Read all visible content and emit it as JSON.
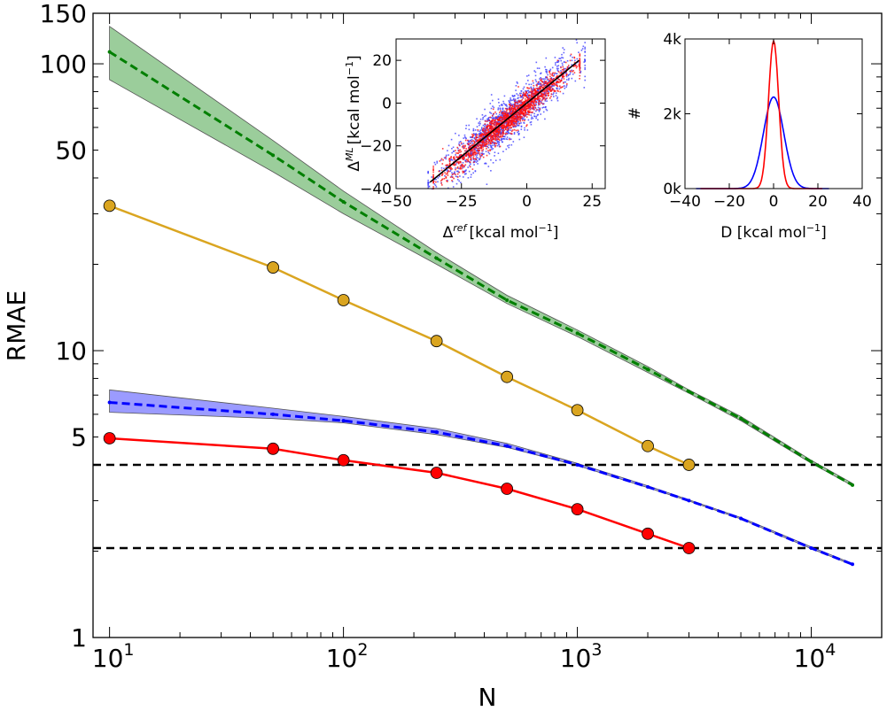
{
  "chart_data": [
    {
      "type": "line",
      "title": "",
      "xlabel": "N",
      "ylabel": "RMAE",
      "xscale": "log",
      "yscale": "log",
      "xlim": [
        8.5,
        20000
      ],
      "ylim": [
        1,
        150
      ],
      "x_ticks": [
        {
          "value": 10,
          "base": "10",
          "exp": "1"
        },
        {
          "value": 100,
          "base": "10",
          "exp": "2"
        },
        {
          "value": 1000,
          "base": "10",
          "exp": "3"
        },
        {
          "value": 10000,
          "base": "10",
          "exp": "4"
        }
      ],
      "y_ticks": [
        {
          "value": 1,
          "label": "1"
        },
        {
          "value": 5,
          "label": "5"
        },
        {
          "value": 10,
          "label": "10"
        },
        {
          "value": 50,
          "label": "50"
        },
        {
          "value": 100,
          "label": "100"
        },
        {
          "value": 150,
          "label": "150"
        }
      ],
      "hlines": [
        4.0,
        2.05
      ],
      "series": [
        {
          "name": "green-band",
          "style": "dashed-band",
          "color": "#007f00",
          "fill": "#7fbf7f",
          "x": [
            10,
            50,
            100,
            250,
            500,
            1000,
            2000,
            3000,
            5000,
            10000,
            15000
          ],
          "y": [
            110,
            48,
            33,
            21,
            15,
            11.5,
            8.6,
            7.2,
            5.8,
            4.1,
            3.4
          ],
          "lower": [
            88,
            42,
            30,
            20,
            14.6,
            11.2,
            8.4,
            7.1,
            5.7,
            4.05,
            3.38
          ],
          "upper": [
            135,
            54,
            36,
            22,
            15.6,
            11.8,
            8.8,
            7.3,
            5.9,
            4.15,
            3.45
          ]
        },
        {
          "name": "gold",
          "style": "solid-marker",
          "color": "#daa520",
          "x": [
            10,
            50,
            100,
            250,
            500,
            1000,
            2000,
            3000
          ],
          "y": [
            32,
            19.5,
            15,
            10.8,
            8.1,
            6.2,
            4.65,
            4.0
          ]
        },
        {
          "name": "blue-band",
          "style": "dashed-band",
          "color": "#0000ff",
          "fill": "#7f7fff",
          "x": [
            10,
            50,
            100,
            250,
            500,
            1000,
            2000,
            3000,
            5000,
            10000,
            15000
          ],
          "y": [
            6.6,
            6.0,
            5.7,
            5.2,
            4.65,
            4.0,
            3.35,
            3.0,
            2.6,
            2.05,
            1.8
          ],
          "lower": [
            6.1,
            5.8,
            5.6,
            5.1,
            4.6,
            3.98,
            3.33,
            2.99,
            2.59,
            2.04,
            1.79
          ],
          "upper": [
            7.3,
            6.3,
            5.9,
            5.35,
            4.75,
            4.05,
            3.38,
            3.02,
            2.62,
            2.07,
            1.81
          ]
        },
        {
          "name": "red",
          "style": "solid-marker",
          "color": "#ff0000",
          "x": [
            10,
            50,
            100,
            250,
            500,
            1000,
            2000,
            3000
          ],
          "y": [
            4.95,
            4.55,
            4.15,
            3.75,
            3.3,
            2.8,
            2.3,
            2.05
          ]
        }
      ]
    },
    {
      "type": "scatter",
      "title": "",
      "xlabel_base": "Δ",
      "xlabel_sup": "ref",
      "xlabel_main": "[kcal mol",
      "xlabel_exp": "−1",
      "xlabel_close": "]",
      "ylabel_base": "Δ",
      "ylabel_sup": "ML",
      "ylabel_main": "[kcal mol",
      "ylabel_exp": "−1",
      "ylabel_close": "]",
      "xlim": [
        -50,
        30
      ],
      "ylim": [
        -40,
        30
      ],
      "x_ticks": [
        {
          "value": -50,
          "label": "−50"
        },
        {
          "value": -25,
          "label": "−25"
        },
        {
          "value": 0,
          "label": "0"
        },
        {
          "value": 25,
          "label": "25"
        }
      ],
      "y_ticks": [
        {
          "value": -40,
          "label": "−40"
        },
        {
          "value": -20,
          "label": "−20"
        },
        {
          "value": 0,
          "label": "0"
        },
        {
          "value": 20,
          "label": "20"
        }
      ],
      "diagonal": {
        "from": [
          -37,
          -37
        ],
        "to": [
          20,
          20
        ],
        "color": "#000000"
      },
      "point_clouds": [
        {
          "name": "blue",
          "color": "#4040ff",
          "count": 1400,
          "spread": 5.5,
          "x_range": [
            -38,
            22
          ]
        },
        {
          "name": "red",
          "color": "#ff1010",
          "count": 1600,
          "spread": 3.2,
          "x_range": [
            -36,
            20
          ]
        }
      ]
    },
    {
      "type": "line",
      "title": "",
      "xlabel_main": "D [kcal mol",
      "xlabel_exp": "−1",
      "xlabel_close": "]",
      "ylabel": "#",
      "xlim": [
        -40,
        40
      ],
      "ylim": [
        0,
        4000
      ],
      "x_ticks": [
        {
          "value": -40,
          "label": "−40"
        },
        {
          "value": -20,
          "label": "−20"
        },
        {
          "value": 0,
          "label": "0"
        },
        {
          "value": 20,
          "label": "20"
        },
        {
          "value": 40,
          "label": "40"
        }
      ],
      "y_ticks": [
        {
          "value": 0,
          "label": "0k"
        },
        {
          "value": 2000,
          "label": "2k"
        },
        {
          "value": 4000,
          "label": "4k"
        }
      ],
      "series": [
        {
          "name": "blue",
          "color": "#0000ff",
          "center": 0,
          "sigma": 4.6,
          "peak": 2450,
          "x_range": [
            -35,
            25
          ]
        },
        {
          "name": "red",
          "color": "#ff0000",
          "center": 0,
          "sigma": 2.3,
          "peak": 3950,
          "x_range": [
            -33,
            22
          ]
        }
      ]
    }
  ]
}
